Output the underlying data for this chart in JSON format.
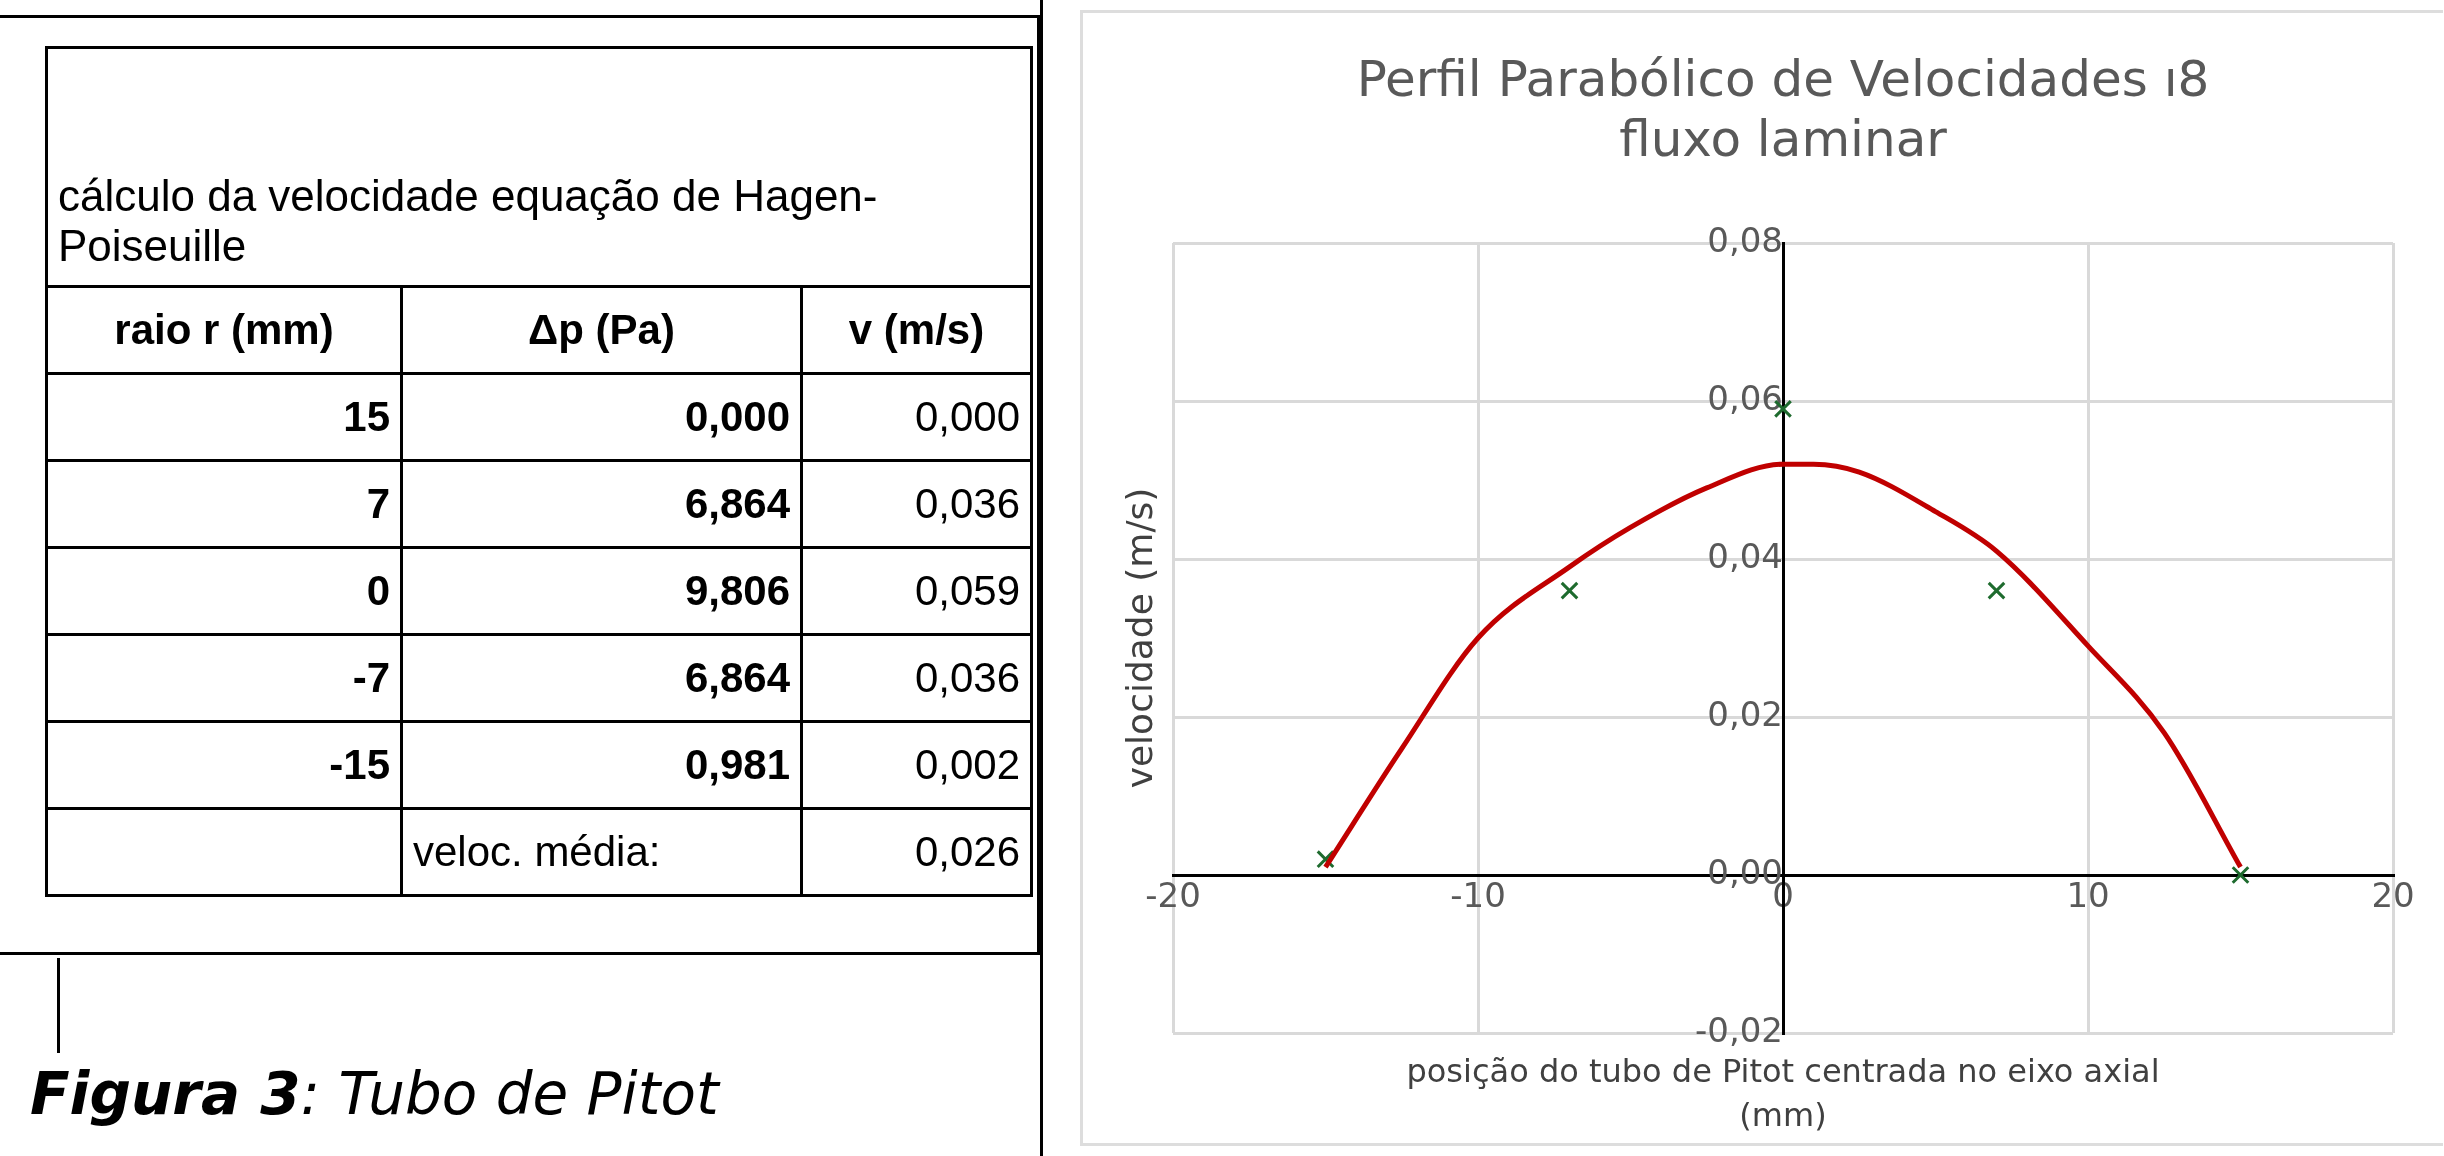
{
  "chart_data": [
    {
      "type": "other",
      "title": "cálculo da velocidade equação de Hagen-Poiseuille",
      "annotations": [
        "raio r (mm)",
        "Δp (Pa)",
        "v (m/s)",
        "15",
        "0,000",
        "0,000",
        "7",
        "6,864",
        "0,036",
        "0",
        "9,806",
        "0,059",
        "-7",
        "6,864",
        "0,036",
        "-15",
        "0,981",
        "0,002",
        "veloc. média:",
        "0,026",
        "Figura 3: Tubo de Pitot"
      ]
    },
    {
      "type": "scatter",
      "title": "Perfil Parabólico de Velocidades ı8\nfluxo laminar",
      "xlabel": "posição do tubo de Pitot centrada no eixo axial\n(mm)",
      "ylabel": "velocidade (m/s)",
      "xlim": [
        -20,
        20
      ],
      "xticks": [
        -20,
        -10,
        0,
        10,
        20
      ],
      "ylim": [
        -0.02,
        0.08
      ],
      "yticks": [
        {
          "value": -0.02,
          "label": "-0,02"
        },
        {
          "value": 0,
          "label": "0,00"
        },
        {
          "value": 0.02,
          "label": "0,02"
        },
        {
          "value": 0.04,
          "label": "0,04"
        },
        {
          "value": 0.06,
          "label": "0,06"
        },
        {
          "value": 0.08,
          "label": "0,08"
        }
      ],
      "grid": true,
      "series": [
        {
          "type": "line",
          "color": "#c00000",
          "marker": "none",
          "x": [
            -15,
            -12.5,
            -10,
            -7,
            -5,
            -2.5,
            0,
            1,
            2.5,
            5,
            7,
            10,
            12.5,
            15
          ],
          "values": [
            0.001,
            0.016,
            0.03,
            0.039,
            0.044,
            0.049,
            0.052,
            0.052,
            0.051,
            0.046,
            0.041,
            0.029,
            0.018,
            0.001
          ]
        },
        {
          "type": "scatter",
          "color": "#1e6b2e",
          "marker": "cross",
          "x": [
            15,
            7,
            0,
            -7,
            -15
          ],
          "values": [
            0.0,
            0.036,
            0.059,
            0.036,
            0.002
          ]
        }
      ]
    }
  ]
}
